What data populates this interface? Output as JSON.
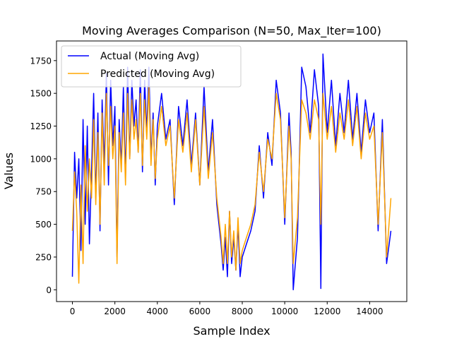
{
  "chart_data": {
    "type": "line",
    "title": "Moving Averages Comparison (N=50, Max_Iter=100)",
    "xlabel": "Sample Index",
    "ylabel": "Values",
    "xlim": [
      -750,
      15750
    ],
    "ylim": [
      -90,
      1900
    ],
    "xticks": [
      0,
      2000,
      4000,
      6000,
      8000,
      10000,
      12000,
      14000
    ],
    "yticks": [
      0,
      250,
      500,
      750,
      1000,
      1250,
      1500,
      1750
    ],
    "legend": "top-left",
    "grid": false,
    "series": [
      {
        "name": "Actual (Moving Avg)",
        "color": "#0000ff",
        "x": [
          0,
          100,
          200,
          300,
          400,
          500,
          600,
          700,
          800,
          900,
          1000,
          1100,
          1200,
          1300,
          1400,
          1500,
          1600,
          1700,
          1800,
          1900,
          2000,
          2100,
          2200,
          2300,
          2400,
          2500,
          2600,
          2700,
          2800,
          2900,
          3000,
          3100,
          3200,
          3300,
          3400,
          3500,
          3600,
          3700,
          3800,
          3900,
          4000,
          4200,
          4400,
          4600,
          4800,
          5000,
          5200,
          5400,
          5600,
          5800,
          6000,
          6200,
          6400,
          6600,
          6800,
          7000,
          7100,
          7200,
          7300,
          7400,
          7500,
          7600,
          7700,
          7800,
          7900,
          8000,
          8200,
          8400,
          8600,
          8800,
          9000,
          9200,
          9400,
          9600,
          9800,
          10000,
          10200,
          10300,
          10400,
          10600,
          10800,
          11000,
          11200,
          11400,
          11600,
          11700,
          11800,
          12000,
          12200,
          12400,
          12600,
          12800,
          13000,
          13200,
          13400,
          13600,
          13800,
          14000,
          14200,
          14400,
          14600,
          14800,
          15000
        ],
        "y": [
          100,
          1050,
          700,
          1000,
          300,
          1300,
          500,
          1250,
          350,
          900,
          1500,
          700,
          1350,
          450,
          1450,
          950,
          1650,
          800,
          1600,
          1100,
          1400,
          250,
          1300,
          950,
          1550,
          850,
          1700,
          1000,
          1600,
          1250,
          1450,
          1050,
          1680,
          900,
          1600,
          1200,
          1700,
          1000,
          1350,
          800,
          1250,
          1500,
          1150,
          1300,
          650,
          1400,
          1100,
          1450,
          950,
          1350,
          800,
          1550,
          900,
          1300,
          650,
          350,
          150,
          400,
          100,
          600,
          200,
          400,
          150,
          500,
          100,
          250,
          350,
          450,
          600,
          1100,
          700,
          1200,
          950,
          1600,
          1350,
          500,
          1350,
          1050,
          0,
          400,
          1700,
          1550,
          1200,
          1680,
          1400,
          10,
          1800,
          1200,
          1600,
          1100,
          1500,
          1200,
          1600,
          1150,
          1500,
          1050,
          1450,
          1200,
          1350,
          450,
          1300,
          200,
          450
        ]
      },
      {
        "name": "Predicted (Moving Avg)",
        "color": "#ffa500",
        "x": [
          0,
          100,
          200,
          300,
          400,
          500,
          600,
          700,
          800,
          900,
          1000,
          1100,
          1200,
          1300,
          1400,
          1500,
          1600,
          1700,
          1800,
          1900,
          2000,
          2100,
          2200,
          2300,
          2400,
          2500,
          2600,
          2700,
          2800,
          2900,
          3000,
          3100,
          3200,
          3300,
          3400,
          3500,
          3600,
          3700,
          3800,
          3900,
          4000,
          4200,
          4400,
          4600,
          4800,
          5000,
          5200,
          5400,
          5600,
          5800,
          6000,
          6200,
          6400,
          6600,
          6800,
          7000,
          7100,
          7200,
          7300,
          7400,
          7500,
          7600,
          7700,
          7800,
          7900,
          8000,
          8200,
          8400,
          8600,
          8800,
          9000,
          9200,
          9400,
          9600,
          9800,
          10000,
          10200,
          10300,
          10400,
          10600,
          10800,
          11000,
          11200,
          11400,
          11600,
          11700,
          11800,
          12000,
          12200,
          12400,
          12600,
          12800,
          13000,
          13200,
          13400,
          13600,
          13800,
          14000,
          14200,
          14400,
          14600,
          14800,
          15000
        ],
        "y": [
          450,
          900,
          600,
          50,
          800,
          200,
          1100,
          600,
          1000,
          700,
          1300,
          650,
          1200,
          500,
          1350,
          800,
          1500,
          950,
          1400,
          1000,
          1250,
          200,
          1200,
          900,
          1350,
          800,
          1500,
          1000,
          1450,
          1150,
          1300,
          1050,
          1500,
          950,
          1450,
          1150,
          1550,
          950,
          1300,
          850,
          1150,
          1400,
          1100,
          1250,
          700,
          1300,
          1050,
          1350,
          900,
          1300,
          800,
          1400,
          850,
          1200,
          700,
          400,
          200,
          500,
          200,
          600,
          250,
          450,
          150,
          550,
          200,
          300,
          400,
          500,
          650,
          1050,
          750,
          1150,
          1000,
          1500,
          1300,
          550,
          1250,
          1000,
          200,
          550,
          1450,
          1350,
          1150,
          1450,
          1300,
          500,
          1500,
          1150,
          1400,
          1050,
          1350,
          1150,
          1450,
          1100,
          1400,
          1000,
          1350,
          1150,
          1250,
          500,
          1200,
          250,
          700
        ]
      }
    ]
  }
}
